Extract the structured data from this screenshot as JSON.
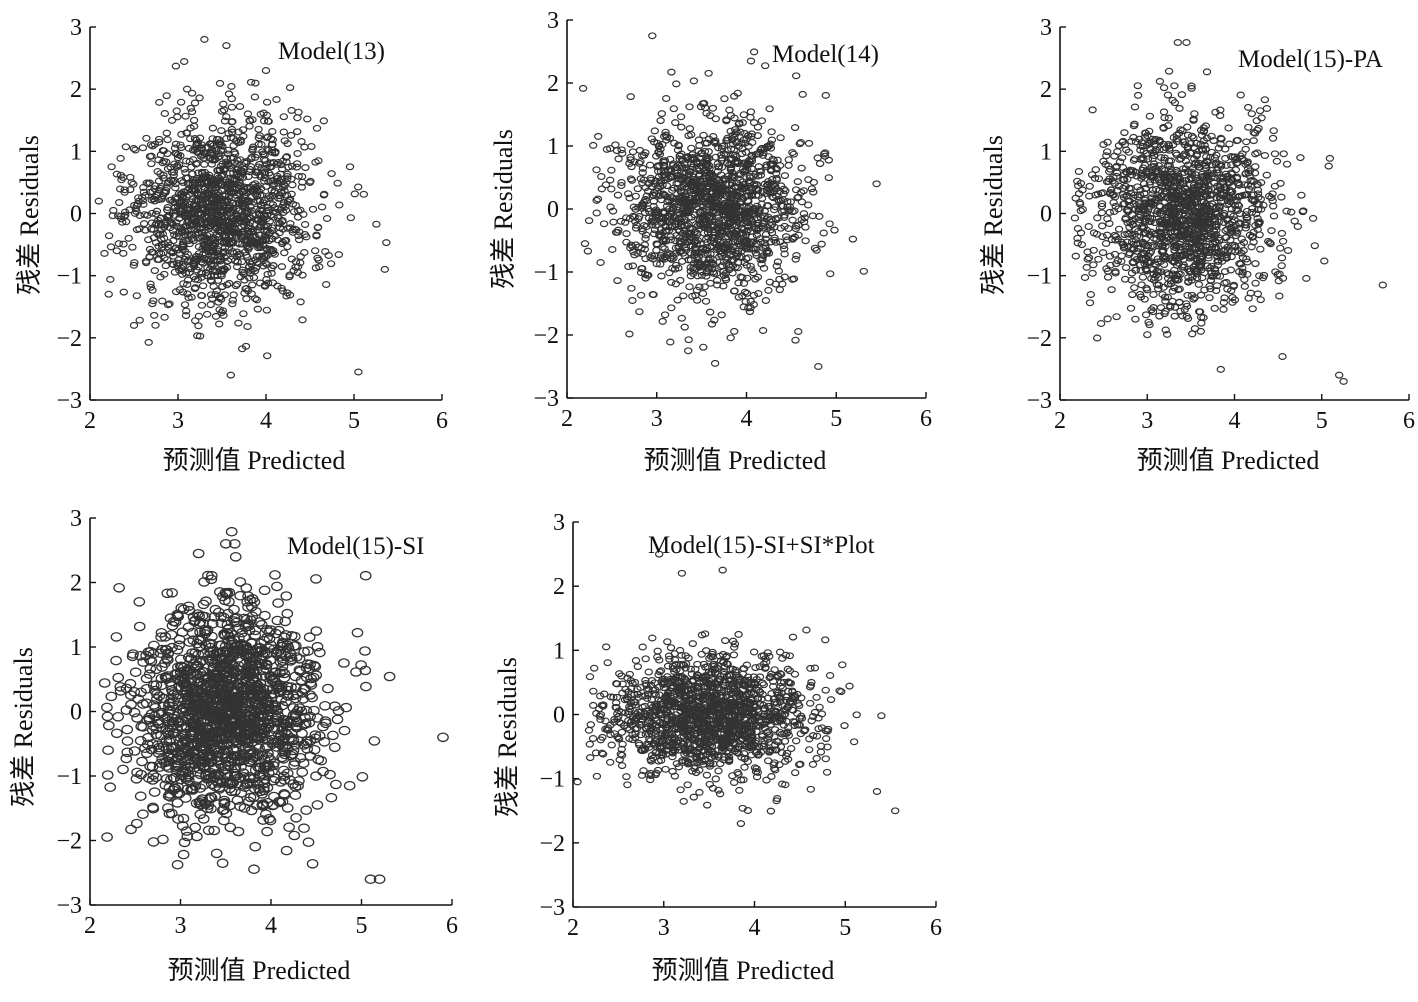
{
  "chart_data": [
    {
      "type": "scatter",
      "id": "model13",
      "title": "Model(13)",
      "xlabel": "预测值  Predicted",
      "ylabel": "残差  Residuals",
      "xlim": [
        2,
        6
      ],
      "ylim": [
        -3,
        3
      ],
      "xticks": [
        "2",
        "3",
        "4",
        "5",
        "6"
      ],
      "yticks": [
        "3",
        "2",
        "1",
        "0",
        "−1",
        "−2",
        "−3"
      ],
      "cloud": {
        "n": 1500,
        "center_x": 3.5,
        "sd_x": 0.5,
        "sd_y": 0.75,
        "seed": 11
      },
      "points": [
        {
          "x": 3.3,
          "y": 2.8
        },
        {
          "x": 3.55,
          "y": 2.7
        },
        {
          "x": 4.0,
          "y": 2.3
        },
        {
          "x": 3.6,
          "y": -2.6
        },
        {
          "x": 5.05,
          "y": -2.55
        },
        {
          "x": 5.35,
          "y": -0.9
        },
        {
          "x": 2.1,
          "y": 0.2
        },
        {
          "x": 2.5,
          "y": -1.8
        }
      ]
    },
    {
      "type": "scatter",
      "id": "model14",
      "title": "Model(14)",
      "xlabel": "预测值  Predicted",
      "ylabel": "残差  Residuals",
      "xlim": [
        2,
        6
      ],
      "ylim": [
        -3,
        3
      ],
      "xticks": [
        "2",
        "3",
        "4",
        "5",
        "6"
      ],
      "yticks": [
        "3",
        "2",
        "1",
        "0",
        "−1",
        "−2",
        "−3"
      ],
      "cloud": {
        "n": 1500,
        "center_x": 3.6,
        "sd_x": 0.5,
        "sd_y": 0.7,
        "seed": 23
      },
      "points": [
        {
          "x": 2.95,
          "y": 2.75
        },
        {
          "x": 4.05,
          "y": 2.35
        },
        {
          "x": 4.8,
          "y": -2.5
        },
        {
          "x": 3.35,
          "y": -2.25
        },
        {
          "x": 2.2,
          "y": -0.55
        },
        {
          "x": 5.45,
          "y": 0.4
        },
        {
          "x": 3.65,
          "y": -2.45
        }
      ]
    },
    {
      "type": "scatter",
      "id": "model15pa",
      "title": "Model(15)-PA",
      "xlabel": "预测值  Predicted",
      "ylabel": "残差  Residuals",
      "xlim": [
        2,
        6
      ],
      "ylim": [
        -3,
        3
      ],
      "xticks": [
        "2",
        "3",
        "4",
        "5",
        "6"
      ],
      "yticks": [
        "3",
        "2",
        "1",
        "0",
        "−1",
        "−2",
        "−3"
      ],
      "cloud": {
        "n": 1500,
        "center_x": 3.4,
        "sd_x": 0.5,
        "sd_y": 0.75,
        "seed": 37
      },
      "points": [
        {
          "x": 3.35,
          "y": 2.75
        },
        {
          "x": 3.45,
          "y": 2.75
        },
        {
          "x": 5.25,
          "y": -2.7
        },
        {
          "x": 5.2,
          "y": -2.6
        },
        {
          "x": 5.7,
          "y": -1.15
        },
        {
          "x": 2.25,
          "y": -0.5
        },
        {
          "x": 3.0,
          "y": -1.95
        },
        {
          "x": 4.55,
          "y": -2.3
        }
      ]
    },
    {
      "type": "scatter",
      "id": "model15si",
      "title": "Model(15)-SI",
      "xlabel": "预测值  Predicted",
      "ylabel": "残差  Residuals",
      "xlim": [
        2,
        6
      ],
      "ylim": [
        -3,
        3
      ],
      "xticks": [
        "2",
        "3",
        "4",
        "5",
        "6"
      ],
      "yticks": [
        "3",
        "2",
        "1",
        "0",
        "−1",
        "−2",
        "−3"
      ],
      "cloud": {
        "n": 1600,
        "center_x": 3.5,
        "sd_x": 0.5,
        "sd_y": 0.8,
        "seed": 51
      },
      "points": [
        {
          "x": 3.5,
          "y": 2.6
        },
        {
          "x": 3.6,
          "y": 2.6
        },
        {
          "x": 3.2,
          "y": 2.45
        },
        {
          "x": 5.1,
          "y": -2.6
        },
        {
          "x": 5.2,
          "y": -2.6
        },
        {
          "x": 5.9,
          "y": -0.4
        },
        {
          "x": 3.4,
          "y": -2.2
        },
        {
          "x": 2.2,
          "y": -0.6
        }
      ]
    },
    {
      "type": "scatter",
      "id": "model15sisiplot",
      "title": "Model(15)-SI+SI*Plot",
      "xlabel": "预测值  Predicted",
      "ylabel": "残差  Residuals",
      "xlim": [
        2,
        6
      ],
      "ylim": [
        -3,
        3
      ],
      "xticks": [
        "2",
        "3",
        "4",
        "5",
        "6"
      ],
      "yticks": [
        "3",
        "2",
        "1",
        "0",
        "−1",
        "−2",
        "−3"
      ],
      "cloud": {
        "n": 1500,
        "center_x": 3.5,
        "sd_x": 0.55,
        "sd_y": 0.45,
        "seed": 67
      },
      "points": [
        {
          "x": 3.2,
          "y": 2.2
        },
        {
          "x": 3.65,
          "y": 2.25
        },
        {
          "x": 2.95,
          "y": 2.5
        },
        {
          "x": 3.85,
          "y": -1.7
        },
        {
          "x": 5.55,
          "y": -1.5
        },
        {
          "x": 2.05,
          "y": -1.05
        },
        {
          "x": 5.35,
          "y": -1.2
        },
        {
          "x": 4.8,
          "y": -0.9
        }
      ]
    }
  ]
}
